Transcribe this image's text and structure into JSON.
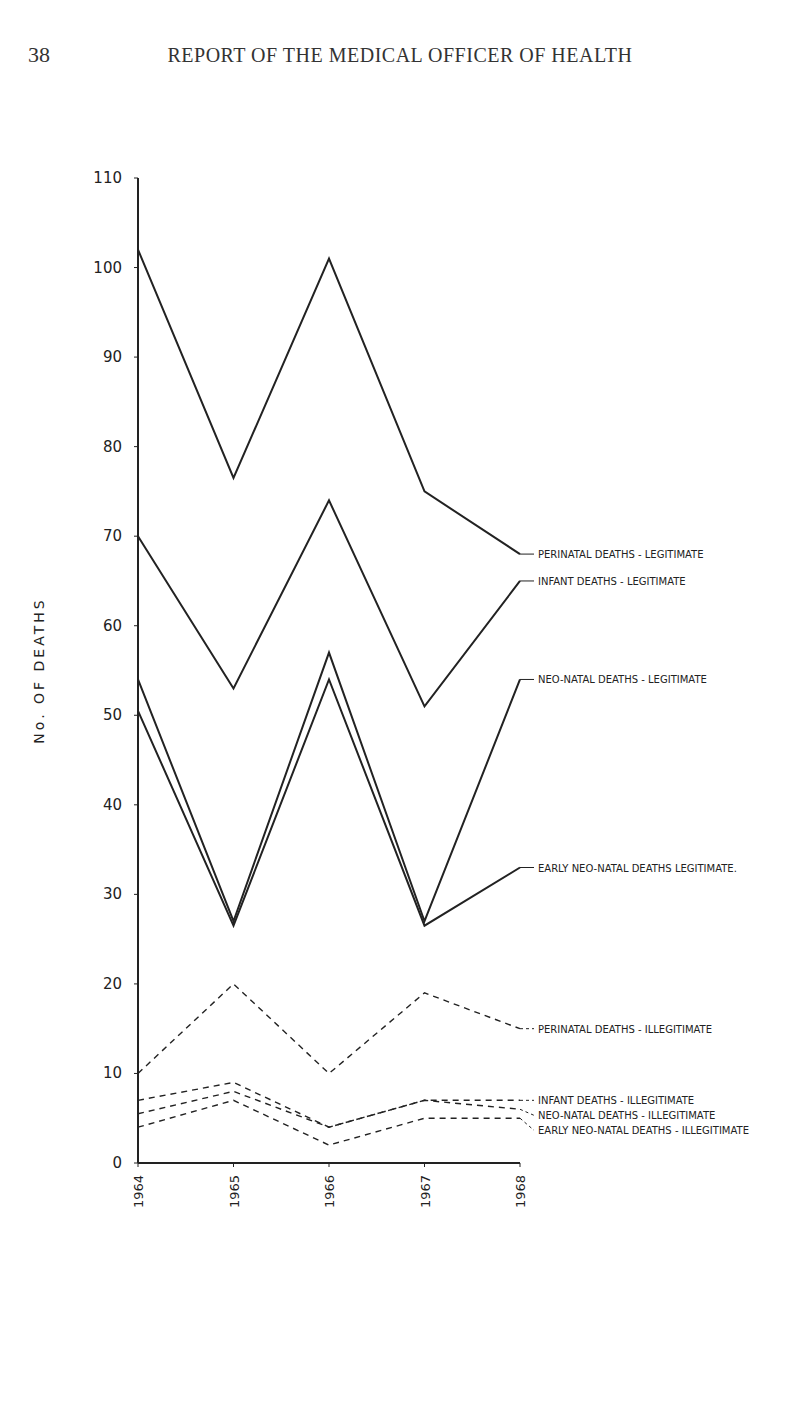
{
  "page": {
    "number": "38",
    "header": "REPORT OF THE MEDICAL OFFICER OF HEALTH"
  },
  "chart_data": {
    "type": "line",
    "y_label": "No. OF DEATHS",
    "x": [
      1964,
      1965,
      1966,
      1967,
      1968
    ],
    "xlim": [
      1964,
      1968
    ],
    "xticks": [
      1964,
      1965,
      1966,
      1967,
      1968
    ],
    "ylim": [
      0,
      110
    ],
    "yticks": [
      0,
      10,
      20,
      30,
      40,
      50,
      60,
      70,
      80,
      90,
      100,
      110
    ],
    "grid": false,
    "color": "#222222",
    "series": [
      {
        "name": "PERINATAL DEATHS - LEGITIMATE",
        "line_style": "solid",
        "values": [
          102,
          76.5,
          101,
          75,
          68
        ]
      },
      {
        "name": "INFANT DEATHS - LEGITIMATE",
        "line_style": "solid",
        "values": [
          70,
          53,
          74,
          51,
          65
        ]
      },
      {
        "name": "NEO-NATAL DEATHS - LEGITIMATE",
        "line_style": "solid",
        "values": [
          54,
          27,
          57,
          27,
          54
        ]
      },
      {
        "name": "EARLY NEO-NATAL DEATHS LEGITIMATE.",
        "line_style": "solid",
        "values": [
          50.5,
          26.5,
          54,
          26.5,
          33
        ]
      },
      {
        "name": "PERINATAL DEATHS - ILLEGITIMATE",
        "line_style": "dashed",
        "values": [
          10,
          20,
          10,
          19,
          15
        ]
      },
      {
        "name": "INFANT DEATHS - ILLEGITIMATE",
        "line_style": "dashed",
        "values": [
          7,
          9,
          4,
          7,
          7
        ]
      },
      {
        "name": "NEO-NATAL DEATHS - ILLEGITIMATE",
        "line_style": "dashed",
        "values": [
          5.5,
          8,
          4,
          7,
          6
        ]
      },
      {
        "name": "EARLY NEO-NATAL DEATHS - ILLEGITIMATE",
        "line_style": "dashed",
        "values": [
          4,
          7,
          2,
          5,
          5
        ]
      }
    ]
  }
}
